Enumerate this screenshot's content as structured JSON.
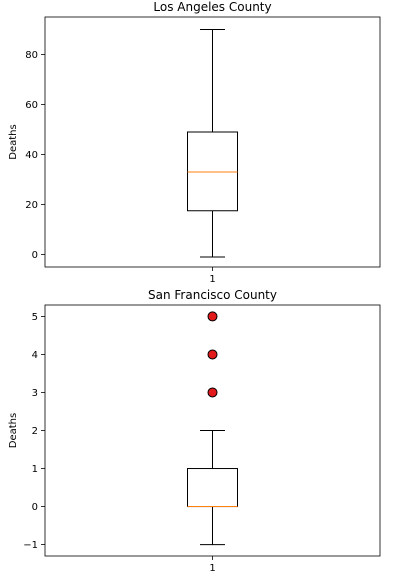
{
  "chart_data": [
    {
      "type": "box",
      "title": "Los Angeles County",
      "ylabel": "Deaths",
      "xlabel": "",
      "categories": [
        "1"
      ],
      "ylim": [
        -5,
        95
      ],
      "yticks": [
        0,
        20,
        40,
        60,
        80
      ],
      "ytick_labels": [
        "0",
        "20",
        "40",
        "60",
        "80"
      ],
      "box": {
        "whisker_low": -1,
        "q1": 17.5,
        "median": 33,
        "q3": 49,
        "whisker_high": 90
      },
      "outliers": [],
      "median_color": "#ff7f0e",
      "grid": false
    },
    {
      "type": "box",
      "title": "San Francisco County",
      "ylabel": "Deaths",
      "xlabel": "",
      "categories": [
        "1"
      ],
      "ylim": [
        -1.3,
        5.3
      ],
      "yticks": [
        -1,
        0,
        1,
        2,
        3,
        4,
        5
      ],
      "ytick_labels": [
        "−1",
        "0",
        "1",
        "2",
        "3",
        "4",
        "5"
      ],
      "box": {
        "whisker_low": -1,
        "q1": 0,
        "median": 0,
        "q3": 1,
        "whisker_high": 2
      },
      "outliers": [
        3,
        4,
        5
      ],
      "median_color": "#ff7f0e",
      "outlier_color": "#e31a1c",
      "grid": false
    }
  ]
}
